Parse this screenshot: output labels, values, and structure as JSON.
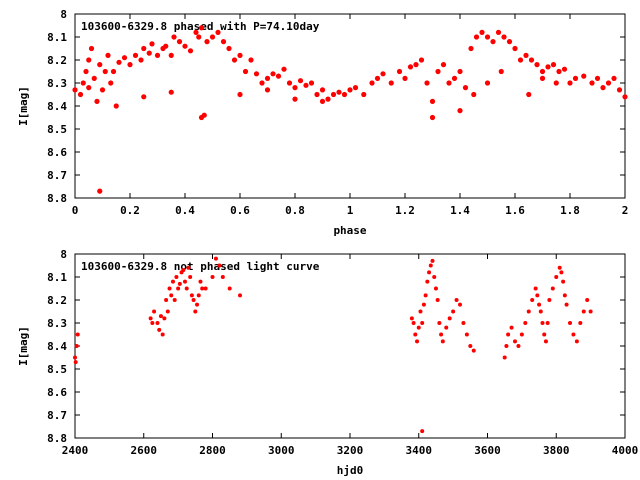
{
  "chart_data": [
    {
      "type": "scatter",
      "title": "103600-6329.8 phased with P=74.10day",
      "xlabel": "phase",
      "ylabel": "I[mag]",
      "xlim": [
        0,
        2
      ],
      "ylim": [
        8.8,
        8.0
      ],
      "y_inverted": true,
      "x_ticks": [
        "0",
        "0.2",
        "0.4",
        "0.6",
        "0.8",
        "1",
        "1.2",
        "1.4",
        "1.6",
        "1.8",
        "2"
      ],
      "y_ticks": [
        "8",
        "8.1",
        "8.2",
        "8.3",
        "8.4",
        "8.5",
        "8.6",
        "8.7",
        "8.8"
      ],
      "marker_color": "#ff0000",
      "grid": false,
      "series": [
        {
          "x": [
            0.0,
            0.02,
            0.03,
            0.04,
            0.05,
            0.06,
            0.07,
            0.08,
            0.09,
            0.1,
            0.11,
            0.12,
            0.13,
            0.14,
            0.16,
            0.18,
            0.2,
            0.22,
            0.24,
            0.25,
            0.27,
            0.28,
            0.3,
            0.32,
            0.33,
            0.35,
            0.36,
            0.38,
            0.4,
            0.42,
            0.44,
            0.45,
            0.46,
            0.48,
            0.5,
            0.52,
            0.54,
            0.56,
            0.58,
            0.6,
            0.62,
            0.64,
            0.66,
            0.68,
            0.7,
            0.72,
            0.74,
            0.76,
            0.78,
            0.8,
            0.82,
            0.84,
            0.86,
            0.88,
            0.9,
            0.92,
            0.94,
            0.96,
            0.98,
            1.0,
            1.02,
            1.05,
            1.08,
            1.1,
            1.12,
            1.15,
            1.18,
            1.2,
            1.22,
            1.24,
            1.26,
            1.28,
            1.3,
            1.32,
            1.34,
            1.36,
            1.38,
            1.4,
            1.42,
            1.44,
            1.46,
            1.48,
            1.5,
            1.52,
            1.54,
            1.56,
            1.58,
            1.6,
            1.62,
            1.64,
            1.66,
            1.68,
            1.7,
            1.72,
            1.74,
            1.76,
            1.78,
            1.8,
            1.82,
            1.85,
            1.88,
            1.9,
            1.92,
            1.94,
            1.96,
            1.98,
            2.0,
            0.09,
            0.46,
            0.47,
            0.05,
            0.15,
            0.25,
            0.35,
            0.6,
            0.7,
            0.8,
            0.9,
            1.3,
            1.4,
            1.45,
            1.5,
            1.55,
            1.65,
            1.7,
            1.75
          ],
          "y": [
            8.33,
            8.35,
            8.3,
            8.25,
            8.2,
            8.15,
            8.28,
            8.38,
            8.22,
            8.33,
            8.25,
            8.18,
            8.3,
            8.25,
            8.21,
            8.19,
            8.22,
            8.18,
            8.2,
            8.15,
            8.17,
            8.13,
            8.18,
            8.15,
            8.14,
            8.18,
            8.1,
            8.12,
            8.14,
            8.16,
            8.08,
            8.1,
            8.06,
            8.12,
            8.1,
            8.08,
            8.12,
            8.15,
            8.2,
            8.18,
            8.25,
            8.2,
            8.26,
            8.3,
            8.28,
            8.26,
            8.27,
            8.24,
            8.3,
            8.32,
            8.29,
            8.31,
            8.3,
            8.35,
            8.33,
            8.37,
            8.35,
            8.34,
            8.35,
            8.33,
            8.32,
            8.35,
            8.3,
            8.28,
            8.26,
            8.3,
            8.25,
            8.28,
            8.23,
            8.22,
            8.2,
            8.3,
            8.38,
            8.25,
            8.22,
            8.3,
            8.28,
            8.25,
            8.32,
            8.15,
            8.1,
            8.08,
            8.1,
            8.12,
            8.08,
            8.1,
            8.12,
            8.15,
            8.2,
            8.18,
            8.2,
            8.22,
            8.25,
            8.23,
            8.22,
            8.25,
            8.24,
            8.3,
            8.28,
            8.27,
            8.3,
            8.28,
            8.32,
            8.3,
            8.28,
            8.33,
            8.36,
            8.77,
            8.45,
            8.44,
            8.32,
            8.4,
            8.36,
            8.34,
            8.35,
            8.33,
            8.37,
            8.38,
            8.45,
            8.42,
            8.35,
            8.3,
            8.25,
            8.35,
            8.28,
            8.3
          ]
        }
      ]
    },
    {
      "type": "scatter",
      "title": "103600-6329.8 not phased light curve",
      "xlabel": "hjd0",
      "ylabel": "I[mag]",
      "xlim": [
        2400,
        4000
      ],
      "ylim": [
        8.8,
        8.0
      ],
      "y_inverted": true,
      "x_ticks": [
        "2400",
        "2600",
        "2800",
        "3000",
        "3200",
        "3400",
        "3600",
        "3800",
        "4000"
      ],
      "y_ticks": [
        "8",
        "8.1",
        "8.2",
        "8.3",
        "8.4",
        "8.5",
        "8.6",
        "8.7",
        "8.8"
      ],
      "marker_color": "#ff0000",
      "grid": false,
      "series": [
        {
          "x": [
            2400,
            2402,
            2405,
            2408,
            2620,
            2625,
            2630,
            2640,
            2645,
            2650,
            2655,
            2660,
            2665,
            2670,
            2675,
            2680,
            2685,
            2690,
            2695,
            2700,
            2705,
            2710,
            2715,
            2720,
            2725,
            2730,
            2735,
            2740,
            2745,
            2750,
            2755,
            2760,
            2765,
            2770,
            2780,
            2800,
            2810,
            2820,
            2830,
            2850,
            2880,
            3380,
            3385,
            3390,
            3395,
            3400,
            3405,
            3410,
            3415,
            3420,
            3425,
            3430,
            3435,
            3440,
            3445,
            3450,
            3455,
            3460,
            3465,
            3470,
            3480,
            3490,
            3500,
            3510,
            3520,
            3530,
            3540,
            3550,
            3560,
            3650,
            3655,
            3660,
            3670,
            3680,
            3690,
            3700,
            3710,
            3720,
            3730,
            3740,
            3745,
            3750,
            3755,
            3760,
            3765,
            3770,
            3775,
            3780,
            3790,
            3800,
            3810,
            3815,
            3820,
            3825,
            3830,
            3840,
            3850,
            3860,
            3870,
            3880,
            3890,
            3900,
            3410
          ],
          "y": [
            8.45,
            8.47,
            8.4,
            8.35,
            8.28,
            8.3,
            8.25,
            8.3,
            8.33,
            8.27,
            8.35,
            8.28,
            8.2,
            8.25,
            8.15,
            8.18,
            8.12,
            8.2,
            8.1,
            8.15,
            8.13,
            8.08,
            8.07,
            8.12,
            8.15,
            8.06,
            8.1,
            8.18,
            8.2,
            8.25,
            8.22,
            8.18,
            8.12,
            8.15,
            8.15,
            8.1,
            8.02,
            8.05,
            8.1,
            8.15,
            8.18,
            8.28,
            8.3,
            8.35,
            8.38,
            8.32,
            8.25,
            8.3,
            8.22,
            8.18,
            8.12,
            8.08,
            8.05,
            8.03,
            8.1,
            8.15,
            8.2,
            8.3,
            8.35,
            8.38,
            8.32,
            8.28,
            8.25,
            8.2,
            8.22,
            8.3,
            8.35,
            8.4,
            8.42,
            8.45,
            8.4,
            8.35,
            8.32,
            8.38,
            8.4,
            8.35,
            8.3,
            8.25,
            8.2,
            8.15,
            8.18,
            8.22,
            8.25,
            8.3,
            8.35,
            8.38,
            8.3,
            8.2,
            8.15,
            8.1,
            8.06,
            8.08,
            8.12,
            8.18,
            8.22,
            8.3,
            8.35,
            8.38,
            8.3,
            8.25,
            8.2,
            8.25,
            8.77
          ]
        }
      ]
    }
  ]
}
